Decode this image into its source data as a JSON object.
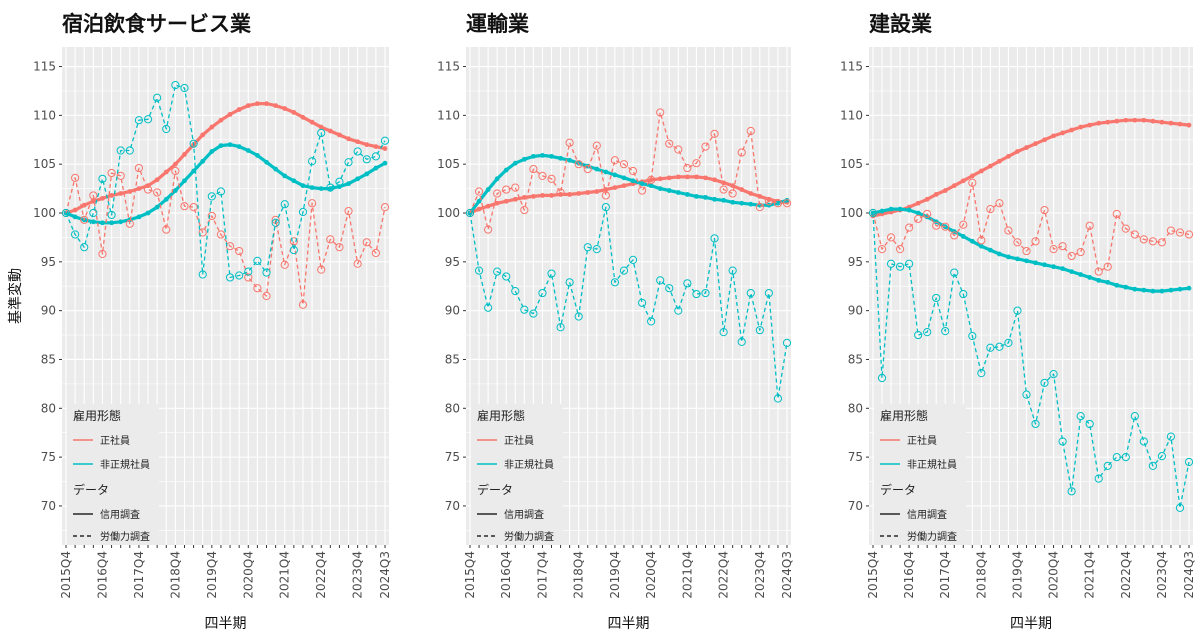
{
  "chart_data": {
    "type": "line",
    "ylabel": "基準変動",
    "xlabel": "四半期",
    "ylim": [
      66,
      117
    ],
    "yticks": [
      70,
      75,
      80,
      85,
      90,
      95,
      100,
      105,
      110,
      115
    ],
    "x_tick_labels": [
      "2015Q4",
      "2016Q4",
      "2017Q4",
      "2018Q4",
      "2019Q4",
      "2020Q4",
      "2021Q4",
      "2022Q4",
      "2023Q4",
      "2024Q3"
    ],
    "x_tick_index": [
      0,
      4,
      8,
      12,
      16,
      20,
      24,
      28,
      32,
      35
    ],
    "n_quarters": 36,
    "grid": true,
    "legend_position": "bottom-left",
    "colors": {
      "regular": "#F8766D",
      "nonregular": "#00BFC4",
      "panel": "#EBEBEB"
    },
    "legend": {
      "employment_title": "雇用形態",
      "employment_items": [
        "正社員",
        "非正規社員"
      ],
      "data_title": "データ",
      "data_items": [
        "信用調査",
        "労働力調査"
      ]
    },
    "panels": [
      {
        "title": "宿泊飲食サービス業",
        "series": [
          {
            "name": "正社員",
            "source": "信用調査",
            "values": [
              100.0,
              100.3,
              100.8,
              101.2,
              101.5,
              101.8,
              102.0,
              102.2,
              102.5,
              102.8,
              103.4,
              104.2,
              105.0,
              106.0,
              107.0,
              108.0,
              108.8,
              109.5,
              110.1,
              110.6,
              111.0,
              111.2,
              111.2,
              111.0,
              110.7,
              110.3,
              109.8,
              109.3,
              108.8,
              108.4,
              108.0,
              107.6,
              107.3,
              107.0,
              106.8,
              106.6
            ]
          },
          {
            "name": "非正規社員",
            "source": "信用調査",
            "values": [
              100.0,
              99.6,
              99.3,
              99.1,
              99.0,
              99.0,
              99.1,
              99.3,
              99.6,
              100.0,
              100.6,
              101.4,
              102.3,
              103.3,
              104.3,
              105.3,
              106.3,
              106.9,
              107.0,
              106.8,
              106.4,
              105.9,
              105.2,
              104.5,
              103.8,
              103.3,
              102.8,
              102.6,
              102.5,
              102.5,
              102.7,
              103.0,
              103.5,
              104.0,
              104.6,
              105.1
            ]
          },
          {
            "name": "正社員",
            "source": "労働力調査",
            "values": [
              100.0,
              103.6,
              99.3,
              101.8,
              95.8,
              104.1,
              103.8,
              98.9,
              104.6,
              102.4,
              102.1,
              98.3,
              104.3,
              100.7,
              100.6,
              98.0,
              99.7,
              97.8,
              96.6,
              96.1,
              93.4,
              92.3,
              91.5,
              99.3,
              94.7,
              97.1,
              90.6,
              101.0,
              94.2,
              97.3,
              96.5,
              100.2,
              94.8,
              97.0,
              95.9,
              100.6
            ]
          },
          {
            "name": "非正規社員",
            "source": "労働力調査",
            "values": [
              100.0,
              97.8,
              96.5,
              100.0,
              103.5,
              99.8,
              106.4,
              106.4,
              109.5,
              109.6,
              111.8,
              108.6,
              113.1,
              112.8,
              107.1,
              93.7,
              101.7,
              102.2,
              93.4,
              93.6,
              94.0,
              95.1,
              93.9,
              99.0,
              100.9,
              96.2,
              100.1,
              105.3,
              108.2,
              102.6,
              103.2,
              105.2,
              106.3,
              105.5,
              105.8,
              107.4
            ]
          }
        ]
      },
      {
        "title": "運輸業",
        "series": [
          {
            "name": "正社員",
            "source": "信用調査",
            "values": [
              100.0,
              100.4,
              100.7,
              101.0,
              101.2,
              101.4,
              101.6,
              101.7,
              101.8,
              101.8,
              101.9,
              101.9,
              102.0,
              102.1,
              102.2,
              102.4,
              102.6,
              102.8,
              103.0,
              103.2,
              103.4,
              103.5,
              103.6,
              103.7,
              103.7,
              103.7,
              103.6,
              103.4,
              103.1,
              102.8,
              102.4,
              102.0,
              101.7,
              101.4,
              101.2,
              101.1
            ]
          },
          {
            "name": "非正規社員",
            "source": "信用調査",
            "values": [
              100.0,
              101.2,
              102.4,
              103.5,
              104.4,
              105.1,
              105.5,
              105.8,
              105.9,
              105.8,
              105.6,
              105.4,
              105.1,
              104.8,
              104.5,
              104.2,
              103.9,
              103.6,
              103.3,
              103.0,
              102.8,
              102.5,
              102.3,
              102.1,
              101.9,
              101.7,
              101.6,
              101.4,
              101.3,
              101.1,
              101.0,
              100.9,
              100.8,
              100.8,
              101.0,
              101.3
            ]
          },
          {
            "name": "正社員",
            "source": "労働力調査",
            "values": [
              100.0,
              102.2,
              98.3,
              102.0,
              102.4,
              102.6,
              100.3,
              104.5,
              103.8,
              103.5,
              102.1,
              107.2,
              105.0,
              104.5,
              106.9,
              101.8,
              105.4,
              105.0,
              104.3,
              102.3,
              103.4,
              110.3,
              107.1,
              106.5,
              104.6,
              105.1,
              106.8,
              108.1,
              102.4,
              102.0,
              106.2,
              108.4,
              100.6,
              101.2,
              101.0,
              101.0
            ]
          },
          {
            "name": "非正規社員",
            "source": "労働力調査",
            "values": [
              100.0,
              94.1,
              90.3,
              94.0,
              93.5,
              92.0,
              90.1,
              89.7,
              91.8,
              93.8,
              88.3,
              92.9,
              89.4,
              96.5,
              96.3,
              100.6,
              92.9,
              94.1,
              95.2,
              90.8,
              88.9,
              93.1,
              92.3,
              90.0,
              92.8,
              91.7,
              91.8,
              97.4,
              87.8,
              94.1,
              86.8,
              91.8,
              88.0,
              91.8,
              81.0,
              86.7
            ]
          }
        ]
      },
      {
        "title": "建設業",
        "series": [
          {
            "name": "正社員",
            "source": "信用調査",
            "values": [
              99.7,
              99.9,
              100.1,
              100.3,
              100.6,
              101.0,
              101.4,
              101.9,
              102.3,
              102.8,
              103.3,
              103.8,
              104.3,
              104.8,
              105.3,
              105.8,
              106.3,
              106.7,
              107.1,
              107.5,
              107.9,
              108.2,
              108.5,
              108.8,
              109.0,
              109.2,
              109.3,
              109.4,
              109.5,
              109.5,
              109.5,
              109.4,
              109.3,
              109.2,
              109.1,
              109.0
            ]
          },
          {
            "name": "非正規社員",
            "source": "信用調査",
            "values": [
              100.0,
              100.2,
              100.4,
              100.4,
              100.3,
              100.0,
              99.6,
              99.1,
              98.6,
              98.1,
              97.6,
              97.1,
              96.6,
              96.2,
              95.8,
              95.5,
              95.3,
              95.1,
              94.9,
              94.7,
              94.5,
              94.3,
              94.0,
              93.7,
              93.4,
              93.1,
              92.9,
              92.6,
              92.4,
              92.2,
              92.1,
              92.0,
              92.0,
              92.1,
              92.2,
              92.3
            ]
          },
          {
            "name": "正社員",
            "source": "労働力調査",
            "values": [
              100.0,
              96.3,
              97.5,
              96.3,
              98.5,
              99.4,
              99.9,
              98.7,
              98.6,
              97.7,
              98.8,
              103.1,
              97.2,
              100.4,
              101.0,
              98.2,
              97.0,
              96.1,
              97.1,
              100.3,
              96.3,
              96.6,
              95.6,
              96.0,
              98.7,
              94.0,
              94.5,
              99.9,
              98.4,
              97.8,
              97.3,
              97.1,
              97.0,
              98.2,
              98.0,
              97.8
            ]
          },
          {
            "name": "非正規社員",
            "source": "労働力調査",
            "values": [
              100.0,
              83.1,
              94.8,
              94.5,
              94.8,
              87.5,
              87.8,
              91.3,
              87.9,
              93.9,
              91.7,
              87.4,
              83.6,
              86.2,
              86.3,
              86.7,
              90.0,
              81.4,
              78.4,
              82.6,
              83.5,
              76.6,
              71.5,
              79.2,
              78.4,
              72.8,
              74.1,
              75.0,
              75.0,
              79.2,
              76.6,
              74.1,
              75.1,
              77.1,
              69.8,
              74.5
            ]
          }
        ]
      }
    ]
  }
}
